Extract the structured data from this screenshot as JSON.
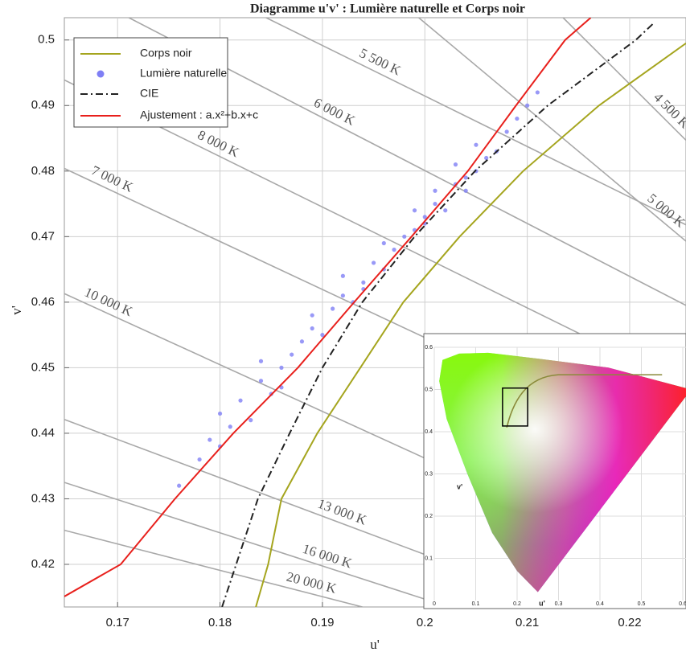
{
  "chart_data": {
    "type": "line",
    "title": "Diagramme u'v' : Lumière naturelle et Corps noir",
    "xlabel": "u'",
    "ylabel": "v'",
    "xlim": [
      0.1648,
      0.2255
    ],
    "ylim": [
      0.4135,
      0.5034
    ],
    "xticks": [
      0.17,
      0.18,
      0.19,
      0.2,
      0.21,
      0.22
    ],
    "yticks": [
      0.42,
      0.43,
      0.44,
      0.45,
      0.46,
      0.47,
      0.48,
      0.49,
      0.5
    ],
    "grid": true,
    "legend": "upper left",
    "series": [
      {
        "name": "Corps noir",
        "type": "line",
        "style": "solid",
        "color": "#a5a51e",
        "x": [
          0.1835,
          0.1847,
          0.186,
          0.1895,
          0.1937,
          0.1979,
          0.2034,
          0.2096,
          0.217,
          0.2255
        ],
        "y": [
          0.4135,
          0.42,
          0.43,
          0.44,
          0.45,
          0.46,
          0.47,
          0.48,
          0.49,
          0.4995
        ]
      },
      {
        "name": "Lumière naturelle",
        "type": "scatter",
        "color": "#7f7ff5",
        "x": [
          0.176,
          0.178,
          0.179,
          0.181,
          0.18,
          0.182,
          0.183,
          0.184,
          0.185,
          0.186,
          0.184,
          0.187,
          0.188,
          0.189,
          0.19,
          0.189,
          0.191,
          0.192,
          0.193,
          0.194,
          0.192,
          0.195,
          0.196,
          0.197,
          0.196,
          0.198,
          0.199,
          0.2,
          0.199,
          0.201,
          0.202,
          0.201,
          0.203,
          0.204,
          0.205,
          0.203,
          0.206,
          0.207,
          0.205,
          0.208,
          0.209,
          0.21,
          0.211,
          0.18,
          0.186,
          0.194,
          0.2,
          0.204
        ],
        "y": [
          0.432,
          0.436,
          0.439,
          0.441,
          0.443,
          0.445,
          0.442,
          0.448,
          0.446,
          0.45,
          0.451,
          0.452,
          0.454,
          0.456,
          0.455,
          0.458,
          0.459,
          0.461,
          0.46,
          0.463,
          0.464,
          0.466,
          0.465,
          0.468,
          0.469,
          0.47,
          0.471,
          0.473,
          0.474,
          0.475,
          0.474,
          0.477,
          0.478,
          0.479,
          0.48,
          0.481,
          0.482,
          0.483,
          0.484,
          0.486,
          0.488,
          0.49,
          0.492,
          0.438,
          0.447,
          0.462,
          0.472,
          0.477
        ]
      },
      {
        "name": "CIE",
        "type": "line",
        "style": "dashdot",
        "color": "#222222",
        "x": [
          0.1802,
          0.1837,
          0.1868,
          0.19,
          0.1939,
          0.199,
          0.2049,
          0.212,
          0.2206,
          0.2223
        ],
        "y": [
          0.4135,
          0.43,
          0.44,
          0.45,
          0.46,
          0.47,
          0.48,
          0.49,
          0.5,
          0.5025
        ]
      },
      {
        "name": "Ajustement : a.x²+b.x+c",
        "type": "line",
        "style": "solid",
        "color": "#e8201c",
        "x": [
          0.1648,
          0.1703,
          0.1756,
          0.1813,
          0.1876,
          0.1931,
          0.1987,
          0.2042,
          0.2089,
          0.2137,
          0.2162
        ],
        "y": [
          0.4151,
          0.42,
          0.43,
          0.44,
          0.45,
          0.46,
          0.47,
          0.48,
          0.49,
          0.5,
          0.5034
        ]
      }
    ],
    "annotations": [
      {
        "text": "20 000 K",
        "x": [
          0.1648,
          0.1939
        ],
        "y": [
          0.4252,
          0.4135
        ]
      },
      {
        "text": "16 000 K",
        "x": [
          0.1648,
          0.2
        ],
        "y": [
          0.4325,
          0.4147
        ]
      },
      {
        "text": "13 000 K",
        "x": [
          0.1648,
          0.2
        ],
        "y": [
          0.4421,
          0.4215
        ]
      },
      {
        "text": "10 000 K",
        "x": [
          0.1648,
          0.2
        ],
        "y": [
          0.4613,
          0.4362
        ]
      },
      {
        "text": "7 000 K",
        "x": [
          0.1648,
          0.2
        ],
        "y": [
          0.4804,
          0.4546
        ]
      },
      {
        "text": "8 000 K",
        "x": [
          0.1648,
          0.2255
        ],
        "y": [
          0.4939,
          0.4472
        ]
      },
      {
        "text": "6 000 K",
        "x": [
          0.1711,
          0.2255
        ],
        "y": [
          0.5034,
          0.4595
        ]
      },
      {
        "text": "5 500 K",
        "x": [
          0.1845,
          0.2255
        ],
        "y": [
          0.5034,
          0.4718
        ]
      },
      {
        "text": "5 000 K",
        "x": [
          0.1994,
          0.2255
        ],
        "y": [
          0.5034,
          0.4693
        ]
      },
      {
        "text": "4 500 K",
        "x": [
          0.2135,
          0.2255
        ],
        "y": [
          0.5034,
          0.4847
        ]
      }
    ],
    "inset": {
      "xlabel": "u'",
      "ylabel": "v'",
      "xticks": [
        0,
        0.1,
        0.2,
        0.3,
        0.4,
        0.5,
        0.6
      ],
      "yticks": [
        0.1,
        0.2,
        0.3,
        0.4,
        0.5,
        0.6
      ]
    }
  }
}
